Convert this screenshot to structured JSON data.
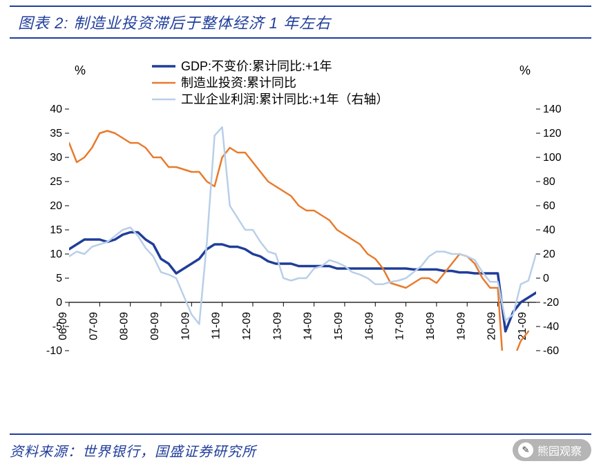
{
  "header": {
    "title": "图表 2:  制造业投资滞后于整体经济 1 年左右"
  },
  "footer": {
    "source": "资料来源：世界银行，国盛证券研究所",
    "watermark": "熊园观察"
  },
  "chart": {
    "type": "line",
    "left_unit": "%",
    "right_unit": "%",
    "background_color": "#ffffff",
    "axis_color": "#000000",
    "grid_color": "#000000",
    "left_axis": {
      "min": -10,
      "max": 40,
      "step": 5,
      "fontsize": 16
    },
    "right_axis": {
      "min": -60,
      "max": 140,
      "step": 20,
      "fontsize": 16
    },
    "x_labels": [
      "06-09",
      "07-09",
      "08-09",
      "09-09",
      "10-09",
      "11-09",
      "12-09",
      "13-09",
      "14-09",
      "15-09",
      "16-09",
      "17-09",
      "18-09",
      "19-09",
      "20-09",
      "21-09"
    ],
    "x_fontsize": 16,
    "legend": {
      "fontsize": 18,
      "items": [
        {
          "label": "GDP:不变价:累计同比:+1年",
          "color": "#1f3d9a",
          "width": 3.5
        },
        {
          "label": "制造业投资:累计同比",
          "color": "#e87a2c",
          "width": 2.5
        },
        {
          "label": "工业企业利润:累计同比:+1年（右轴）",
          "color": "#b8cfe8",
          "width": 2.5
        }
      ]
    },
    "series": [
      {
        "name": "gdp",
        "axis": "left",
        "color": "#1f3d9a",
        "width": 3.5,
        "data": [
          [
            0,
            11
          ],
          [
            0.25,
            12
          ],
          [
            0.5,
            13
          ],
          [
            0.75,
            13
          ],
          [
            1,
            13
          ],
          [
            1.25,
            12.5
          ],
          [
            1.5,
            13
          ],
          [
            1.75,
            14
          ],
          [
            2,
            14.5
          ],
          [
            2.25,
            14.5
          ],
          [
            2.5,
            13
          ],
          [
            2.75,
            12
          ],
          [
            3,
            9
          ],
          [
            3.25,
            8
          ],
          [
            3.5,
            6
          ],
          [
            3.75,
            7
          ],
          [
            4,
            8
          ],
          [
            4.25,
            9
          ],
          [
            4.5,
            11
          ],
          [
            4.75,
            12
          ],
          [
            5,
            12
          ],
          [
            5.25,
            11.5
          ],
          [
            5.5,
            11.5
          ],
          [
            5.75,
            11
          ],
          [
            6,
            10
          ],
          [
            6.25,
            9.5
          ],
          [
            6.5,
            8.5
          ],
          [
            6.75,
            8
          ],
          [
            7,
            8
          ],
          [
            7.25,
            8
          ],
          [
            7.5,
            7.5
          ],
          [
            7.75,
            7.5
          ],
          [
            8,
            7.5
          ],
          [
            8.25,
            7.5
          ],
          [
            8.5,
            7.5
          ],
          [
            8.75,
            7
          ],
          [
            9,
            7
          ],
          [
            9.25,
            7
          ],
          [
            9.5,
            7
          ],
          [
            9.75,
            7
          ],
          [
            10,
            7
          ],
          [
            10.25,
            7
          ],
          [
            10.5,
            7
          ],
          [
            10.75,
            7
          ],
          [
            11,
            7
          ],
          [
            11.25,
            6.8
          ],
          [
            11.5,
            6.8
          ],
          [
            11.75,
            6.8
          ],
          [
            12,
            6.8
          ],
          [
            12.25,
            6.5
          ],
          [
            12.5,
            6.5
          ],
          [
            12.75,
            6.2
          ],
          [
            13,
            6.2
          ],
          [
            13.25,
            6.0
          ],
          [
            13.5,
            6.0
          ],
          [
            13.75,
            6.0
          ],
          [
            14,
            6.0
          ],
          [
            14.25,
            -6.0
          ],
          [
            14.5,
            -2
          ],
          [
            14.75,
            0
          ],
          [
            15,
            1
          ],
          [
            15.25,
            2
          ]
        ]
      },
      {
        "name": "manufacturing",
        "axis": "left",
        "color": "#e87a2c",
        "width": 2.5,
        "data": [
          [
            0,
            33
          ],
          [
            0.25,
            29
          ],
          [
            0.5,
            30
          ],
          [
            0.75,
            32
          ],
          [
            1,
            35
          ],
          [
            1.25,
            35.5
          ],
          [
            1.5,
            35
          ],
          [
            1.75,
            34
          ],
          [
            2,
            33
          ],
          [
            2.25,
            33
          ],
          [
            2.5,
            32
          ],
          [
            2.75,
            30
          ],
          [
            3,
            30
          ],
          [
            3.25,
            28
          ],
          [
            3.5,
            28
          ],
          [
            3.75,
            27.5
          ],
          [
            4,
            27
          ],
          [
            4.25,
            27
          ],
          [
            4.5,
            25
          ],
          [
            4.75,
            24
          ],
          [
            5,
            30
          ],
          [
            5.25,
            32
          ],
          [
            5.5,
            31
          ],
          [
            5.75,
            31
          ],
          [
            6,
            29
          ],
          [
            6.25,
            27
          ],
          [
            6.5,
            25
          ],
          [
            6.75,
            24
          ],
          [
            7,
            23
          ],
          [
            7.25,
            22
          ],
          [
            7.5,
            20
          ],
          [
            7.75,
            19
          ],
          [
            8,
            19
          ],
          [
            8.25,
            18
          ],
          [
            8.5,
            17
          ],
          [
            8.75,
            15
          ],
          [
            9,
            14
          ],
          [
            9.25,
            13
          ],
          [
            9.5,
            12
          ],
          [
            9.75,
            10
          ],
          [
            10,
            9
          ],
          [
            10.25,
            7
          ],
          [
            10.5,
            4
          ],
          [
            10.75,
            3.5
          ],
          [
            11,
            3
          ],
          [
            11.25,
            4
          ],
          [
            11.5,
            5
          ],
          [
            11.75,
            5
          ],
          [
            12,
            4
          ],
          [
            12.25,
            6
          ],
          [
            12.5,
            8
          ],
          [
            12.75,
            10
          ],
          [
            13,
            9.5
          ],
          [
            13.25,
            8
          ],
          [
            13.5,
            5
          ],
          [
            13.75,
            3
          ],
          [
            14,
            3
          ],
          [
            14.25,
            -20
          ],
          [
            14.5,
            -12
          ],
          [
            14.75,
            -8
          ],
          [
            15,
            -6
          ]
        ]
      },
      {
        "name": "industrial_profit",
        "axis": "right",
        "color": "#b8cfe8",
        "width": 2.5,
        "data": [
          [
            0,
            18
          ],
          [
            0.25,
            22
          ],
          [
            0.5,
            20
          ],
          [
            0.75,
            26
          ],
          [
            1,
            28
          ],
          [
            1.25,
            30
          ],
          [
            1.5,
            35
          ],
          [
            1.75,
            40
          ],
          [
            2,
            42
          ],
          [
            2.25,
            35
          ],
          [
            2.5,
            25
          ],
          [
            2.75,
            18
          ],
          [
            3,
            5
          ],
          [
            3.25,
            3
          ],
          [
            3.5,
            0
          ],
          [
            3.75,
            -15
          ],
          [
            4,
            -30
          ],
          [
            4.25,
            -38
          ],
          [
            4.5,
            30
          ],
          [
            4.75,
            118
          ],
          [
            5,
            125
          ],
          [
            5.25,
            60
          ],
          [
            5.5,
            50
          ],
          [
            5.75,
            40
          ],
          [
            6,
            40
          ],
          [
            6.25,
            30
          ],
          [
            6.5,
            22
          ],
          [
            6.75,
            20
          ],
          [
            7,
            0
          ],
          [
            7.25,
            -2
          ],
          [
            7.5,
            0
          ],
          [
            7.75,
            0
          ],
          [
            8,
            8
          ],
          [
            8.25,
            10
          ],
          [
            8.5,
            15
          ],
          [
            8.75,
            13
          ],
          [
            9,
            10
          ],
          [
            9.25,
            5
          ],
          [
            9.5,
            3
          ],
          [
            9.75,
            0
          ],
          [
            10,
            -5
          ],
          [
            10.25,
            -5
          ],
          [
            10.5,
            -3
          ],
          [
            10.75,
            -2
          ],
          [
            11,
            0
          ],
          [
            11.25,
            5
          ],
          [
            11.5,
            10
          ],
          [
            11.75,
            18
          ],
          [
            12,
            22
          ],
          [
            12.25,
            22
          ],
          [
            12.5,
            20
          ],
          [
            12.75,
            20
          ],
          [
            13,
            18
          ],
          [
            13.25,
            15
          ],
          [
            13.5,
            5
          ],
          [
            13.75,
            -3
          ],
          [
            14,
            -3
          ],
          [
            14.25,
            -35
          ],
          [
            14.5,
            -30
          ],
          [
            14.75,
            -5
          ],
          [
            15,
            -2
          ],
          [
            15.25,
            20
          ]
        ]
      }
    ]
  }
}
